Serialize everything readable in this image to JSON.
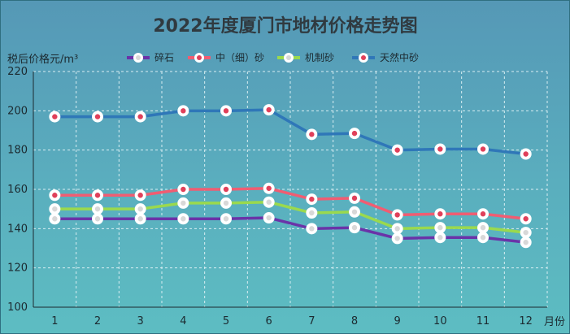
{
  "chart_data": {
    "type": "line",
    "title": "2022年度厦门市地材价格走势图",
    "ylabel": "税后价格元/m³",
    "xlabel": "月份",
    "categories": [
      "1",
      "2",
      "3",
      "4",
      "5",
      "6",
      "7",
      "8",
      "9",
      "10",
      "11",
      "12"
    ],
    "ylim": [
      100,
      220
    ],
    "yticks": [
      100,
      120,
      140,
      160,
      180,
      200,
      220
    ],
    "grid": true,
    "legend_position": "top",
    "series": [
      {
        "name": "碎石",
        "color": "#6a33a8",
        "marker": "white-dot",
        "values": [
          145,
          145,
          145,
          145,
          145,
          145.5,
          140,
          140.5,
          135,
          135.5,
          135.5,
          133
        ]
      },
      {
        "name": "中（细）砂",
        "color": "#f05d72",
        "marker": "red-dot",
        "values": [
          157,
          157,
          157,
          160,
          160,
          160.5,
          155,
          155.5,
          147,
          147.5,
          147.5,
          145
        ]
      },
      {
        "name": "机制砂",
        "color": "#9ad94e",
        "marker": "white-dot",
        "values": [
          150,
          150,
          150,
          153,
          153,
          153.5,
          148,
          148.5,
          140,
          140.5,
          140.5,
          138
        ]
      },
      {
        "name": "天然中砂",
        "color": "#2f77b8",
        "marker": "red-dot",
        "values": [
          197,
          197,
          197,
          200,
          200,
          200.5,
          188,
          188.5,
          180,
          180.5,
          180.5,
          178
        ]
      }
    ]
  }
}
